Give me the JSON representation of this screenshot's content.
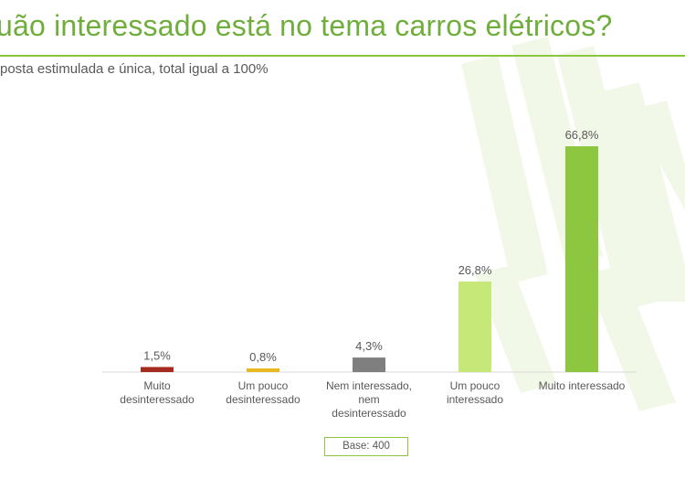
{
  "title": "uão interessado está no tema carros elétricos?",
  "subtitle": "posta estimulada e única, total igual a 100%",
  "base_label": "Base: 400",
  "colors": {
    "accent": "#8cc63f",
    "title": "#6fae3c",
    "bars": [
      "#a52a1f",
      "#e8b923",
      "#7f7f7f",
      "#c5e879",
      "#8dc63f"
    ]
  },
  "chart_data": {
    "type": "bar",
    "title": "uão interessado está no tema carros elétricos?",
    "xlabel": "",
    "ylabel": "",
    "ylim": [
      0,
      70
    ],
    "grid": false,
    "unit": "%",
    "categories": [
      [
        "Muito",
        "desinteressado"
      ],
      [
        "Um pouco",
        "desinteressado"
      ],
      [
        "Nem interessado,",
        "nem",
        "desinteressado"
      ],
      [
        "Um pouco",
        "interessado"
      ],
      [
        "Muito interessado"
      ]
    ],
    "values": [
      1.5,
      0.8,
      4.3,
      26.8,
      66.8
    ],
    "data_labels": [
      "1,5%",
      "0,8%",
      "4,3%",
      "26,8%",
      "66,8%"
    ]
  }
}
